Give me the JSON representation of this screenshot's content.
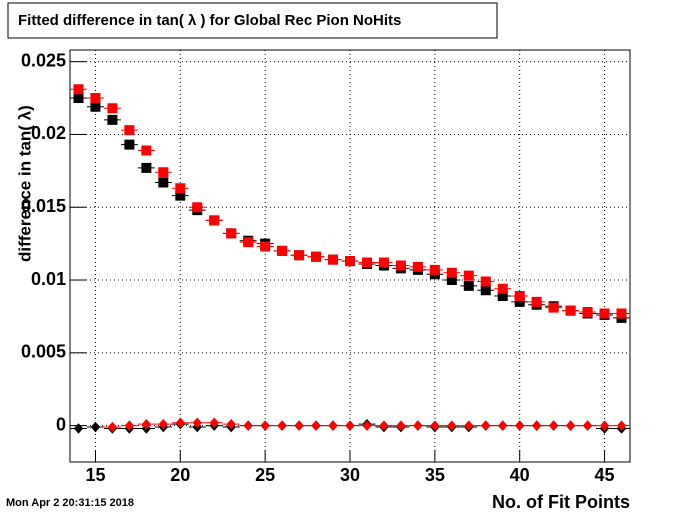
{
  "chart_data": {
    "type": "scatter",
    "title": "Fitted difference in tan( λ ) for Global Rec Pion NoHits",
    "x_label": "No. of Fit Points",
    "y_label": "difference in tan( λ)",
    "timestamp": "Mon Apr  2 20:31:15 2018",
    "x": [
      14,
      15,
      16,
      17,
      18,
      19,
      20,
      21,
      22,
      23,
      24,
      25,
      26,
      27,
      28,
      29,
      30,
      31,
      32,
      33,
      34,
      35,
      36,
      37,
      38,
      39,
      40,
      41,
      42,
      43,
      44,
      45,
      46
    ],
    "series": [
      {
        "color": "#000000",
        "marker": "square",
        "values": [
          0.0225,
          0.0219,
          0.021,
          0.0193,
          0.0177,
          0.0167,
          0.0158,
          0.0148,
          0.0141,
          0.0132,
          0.0127,
          0.0125,
          0.012,
          0.0117,
          0.0116,
          0.0114,
          0.0113,
          0.0111,
          0.011,
          0.0108,
          0.0107,
          0.0104,
          0.01,
          0.0096,
          0.0093,
          0.0089,
          0.0085,
          0.0083,
          0.0082,
          0.0079,
          0.0077,
          0.0076,
          0.0074
        ]
      },
      {
        "color": "#ff0000",
        "marker": "square",
        "values": [
          0.0231,
          0.0225,
          0.0218,
          0.0203,
          0.0189,
          0.0174,
          0.0163,
          0.015,
          0.0141,
          0.0132,
          0.0126,
          0.0123,
          0.012,
          0.0117,
          0.0116,
          0.0114,
          0.0113,
          0.0112,
          0.0112,
          0.011,
          0.0109,
          0.0107,
          0.0105,
          0.0103,
          0.0099,
          0.0094,
          0.0089,
          0.0085,
          0.0081,
          0.0079,
          0.0078,
          0.0077,
          0.0077
        ]
      },
      {
        "color": "#000000",
        "marker": "diamond",
        "values": [
          -0.0002,
          -0.0001,
          -0.0002,
          -0.0002,
          -0.0002,
          -0.0001,
          0.0001,
          -0.0001,
          0,
          -0.0001,
          0,
          0,
          0,
          0,
          0,
          0,
          0,
          0.0001,
          -0.0001,
          -0.0001,
          0,
          -0.0001,
          -0.0001,
          -0.0001,
          0,
          0,
          0,
          0,
          0,
          0,
          0,
          -0.0002,
          -0.0002
        ]
      },
      {
        "color": "#ff0000",
        "marker": "diamond",
        "values": [
          null,
          null,
          -0.0001,
          0,
          0.0001,
          0.0001,
          0.0002,
          0.0002,
          0.0002,
          0.0001,
          0,
          0,
          0,
          0,
          0,
          0,
          0,
          0,
          0,
          0,
          0,
          0,
          0,
          0,
          0,
          0,
          0,
          0,
          0,
          0,
          0,
          0,
          0
        ]
      }
    ],
    "xlim": [
      13.5,
      46.5
    ],
    "ylim": [
      -0.0025,
      0.0258
    ],
    "xticks": [
      15,
      20,
      25,
      30,
      35,
      40,
      45
    ],
    "yticks": [
      0,
      0.005,
      0.01,
      0.015,
      0.02,
      0.025
    ],
    "grid": true
  }
}
